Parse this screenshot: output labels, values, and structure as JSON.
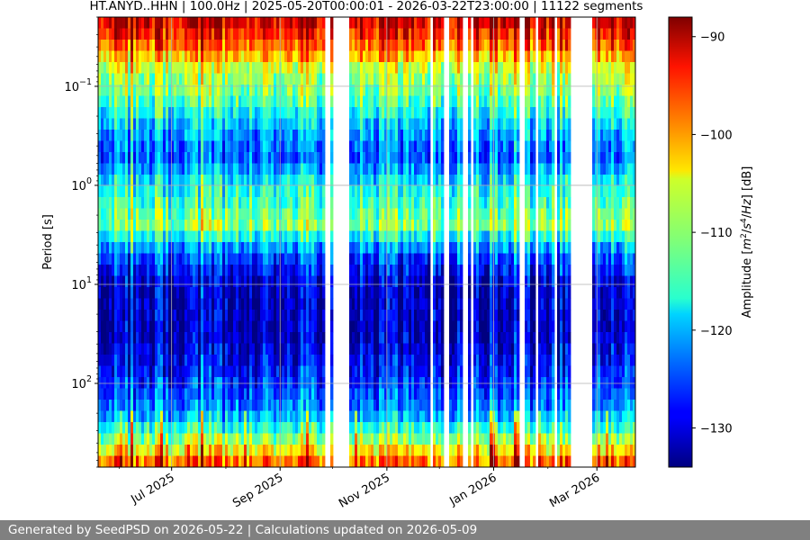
{
  "chart_data": {
    "type": "heatmap",
    "title": "HT.ANYD..HHN | 100.0Hz | 2025-05-20T00:00:01 - 2026-03-22T23:00:00 | 11122 segments",
    "ylabel": "Period [s]",
    "y_scale": "log",
    "y_inverted": true,
    "y_range": [
      0.02,
      700
    ],
    "y_ticks": [
      {
        "value": 0.1,
        "base": "10",
        "exp": "−1"
      },
      {
        "value": 1,
        "base": "10",
        "exp": "0"
      },
      {
        "value": 10,
        "base": "10",
        "exp": "1"
      },
      {
        "value": 100,
        "base": "10",
        "exp": "2"
      }
    ],
    "x_range": [
      "2025-05-20",
      "2026-03-23"
    ],
    "x_ticks": [
      {
        "date": "2025-07-01",
        "label": "Jul 2025"
      },
      {
        "date": "2025-09-01",
        "label": "Sep 2025"
      },
      {
        "date": "2025-11-01",
        "label": "Nov 2025"
      },
      {
        "date": "2026-01-01",
        "label": "Jan 2026"
      },
      {
        "date": "2026-03-01",
        "label": "Mar 2026"
      }
    ],
    "grid": true,
    "colormap": "jet",
    "colorbar": {
      "label_parts": [
        "Amplitude [",
        "m",
        "2",
        "/",
        "s",
        "4",
        "/",
        "Hz",
        "] [dB]"
      ],
      "range": [
        -134,
        -88
      ],
      "ticks": [
        -90,
        -100,
        -110,
        -120,
        -130
      ]
    },
    "data_gaps": [
      [
        "2025-09-27",
        "2025-09-29"
      ],
      [
        "2025-10-01",
        "2025-10-10"
      ],
      [
        "2025-11-19",
        "2025-11-20"
      ],
      [
        "2025-11-26",
        "2025-11-28"
      ],
      [
        "2025-12-04",
        "2025-12-07"
      ],
      [
        "2025-12-15",
        "2025-12-17"
      ],
      [
        "2025-12-19",
        "2025-12-21"
      ],
      [
        "2026-01-16",
        "2026-01-19"
      ],
      [
        "2026-01-25",
        "2026-01-27"
      ],
      [
        "2026-02-05",
        "2026-02-07"
      ],
      [
        "2026-02-14",
        "2026-02-26"
      ]
    ],
    "psd_profile": [
      {
        "period": 0.02,
        "value": -90
      },
      {
        "period": 0.04,
        "value": -98
      },
      {
        "period": 0.07,
        "value": -108
      },
      {
        "period": 0.12,
        "value": -111
      },
      {
        "period": 0.25,
        "value": -119
      },
      {
        "period": 0.5,
        "value": -124
      },
      {
        "period": 1.0,
        "value": -116
      },
      {
        "period": 2.5,
        "value": -110
      },
      {
        "period": 5.0,
        "value": -124
      },
      {
        "period": 10,
        "value": -130
      },
      {
        "period": 30,
        "value": -131
      },
      {
        "period": 80,
        "value": -127
      },
      {
        "period": 200,
        "value": -121
      },
      {
        "period": 400,
        "value": -108
      },
      {
        "period": 700,
        "value": -95
      }
    ]
  },
  "footer": {
    "text": "Generated by SeedPSD on 2026-05-22 | Calculations updated on 2026-05-09"
  }
}
